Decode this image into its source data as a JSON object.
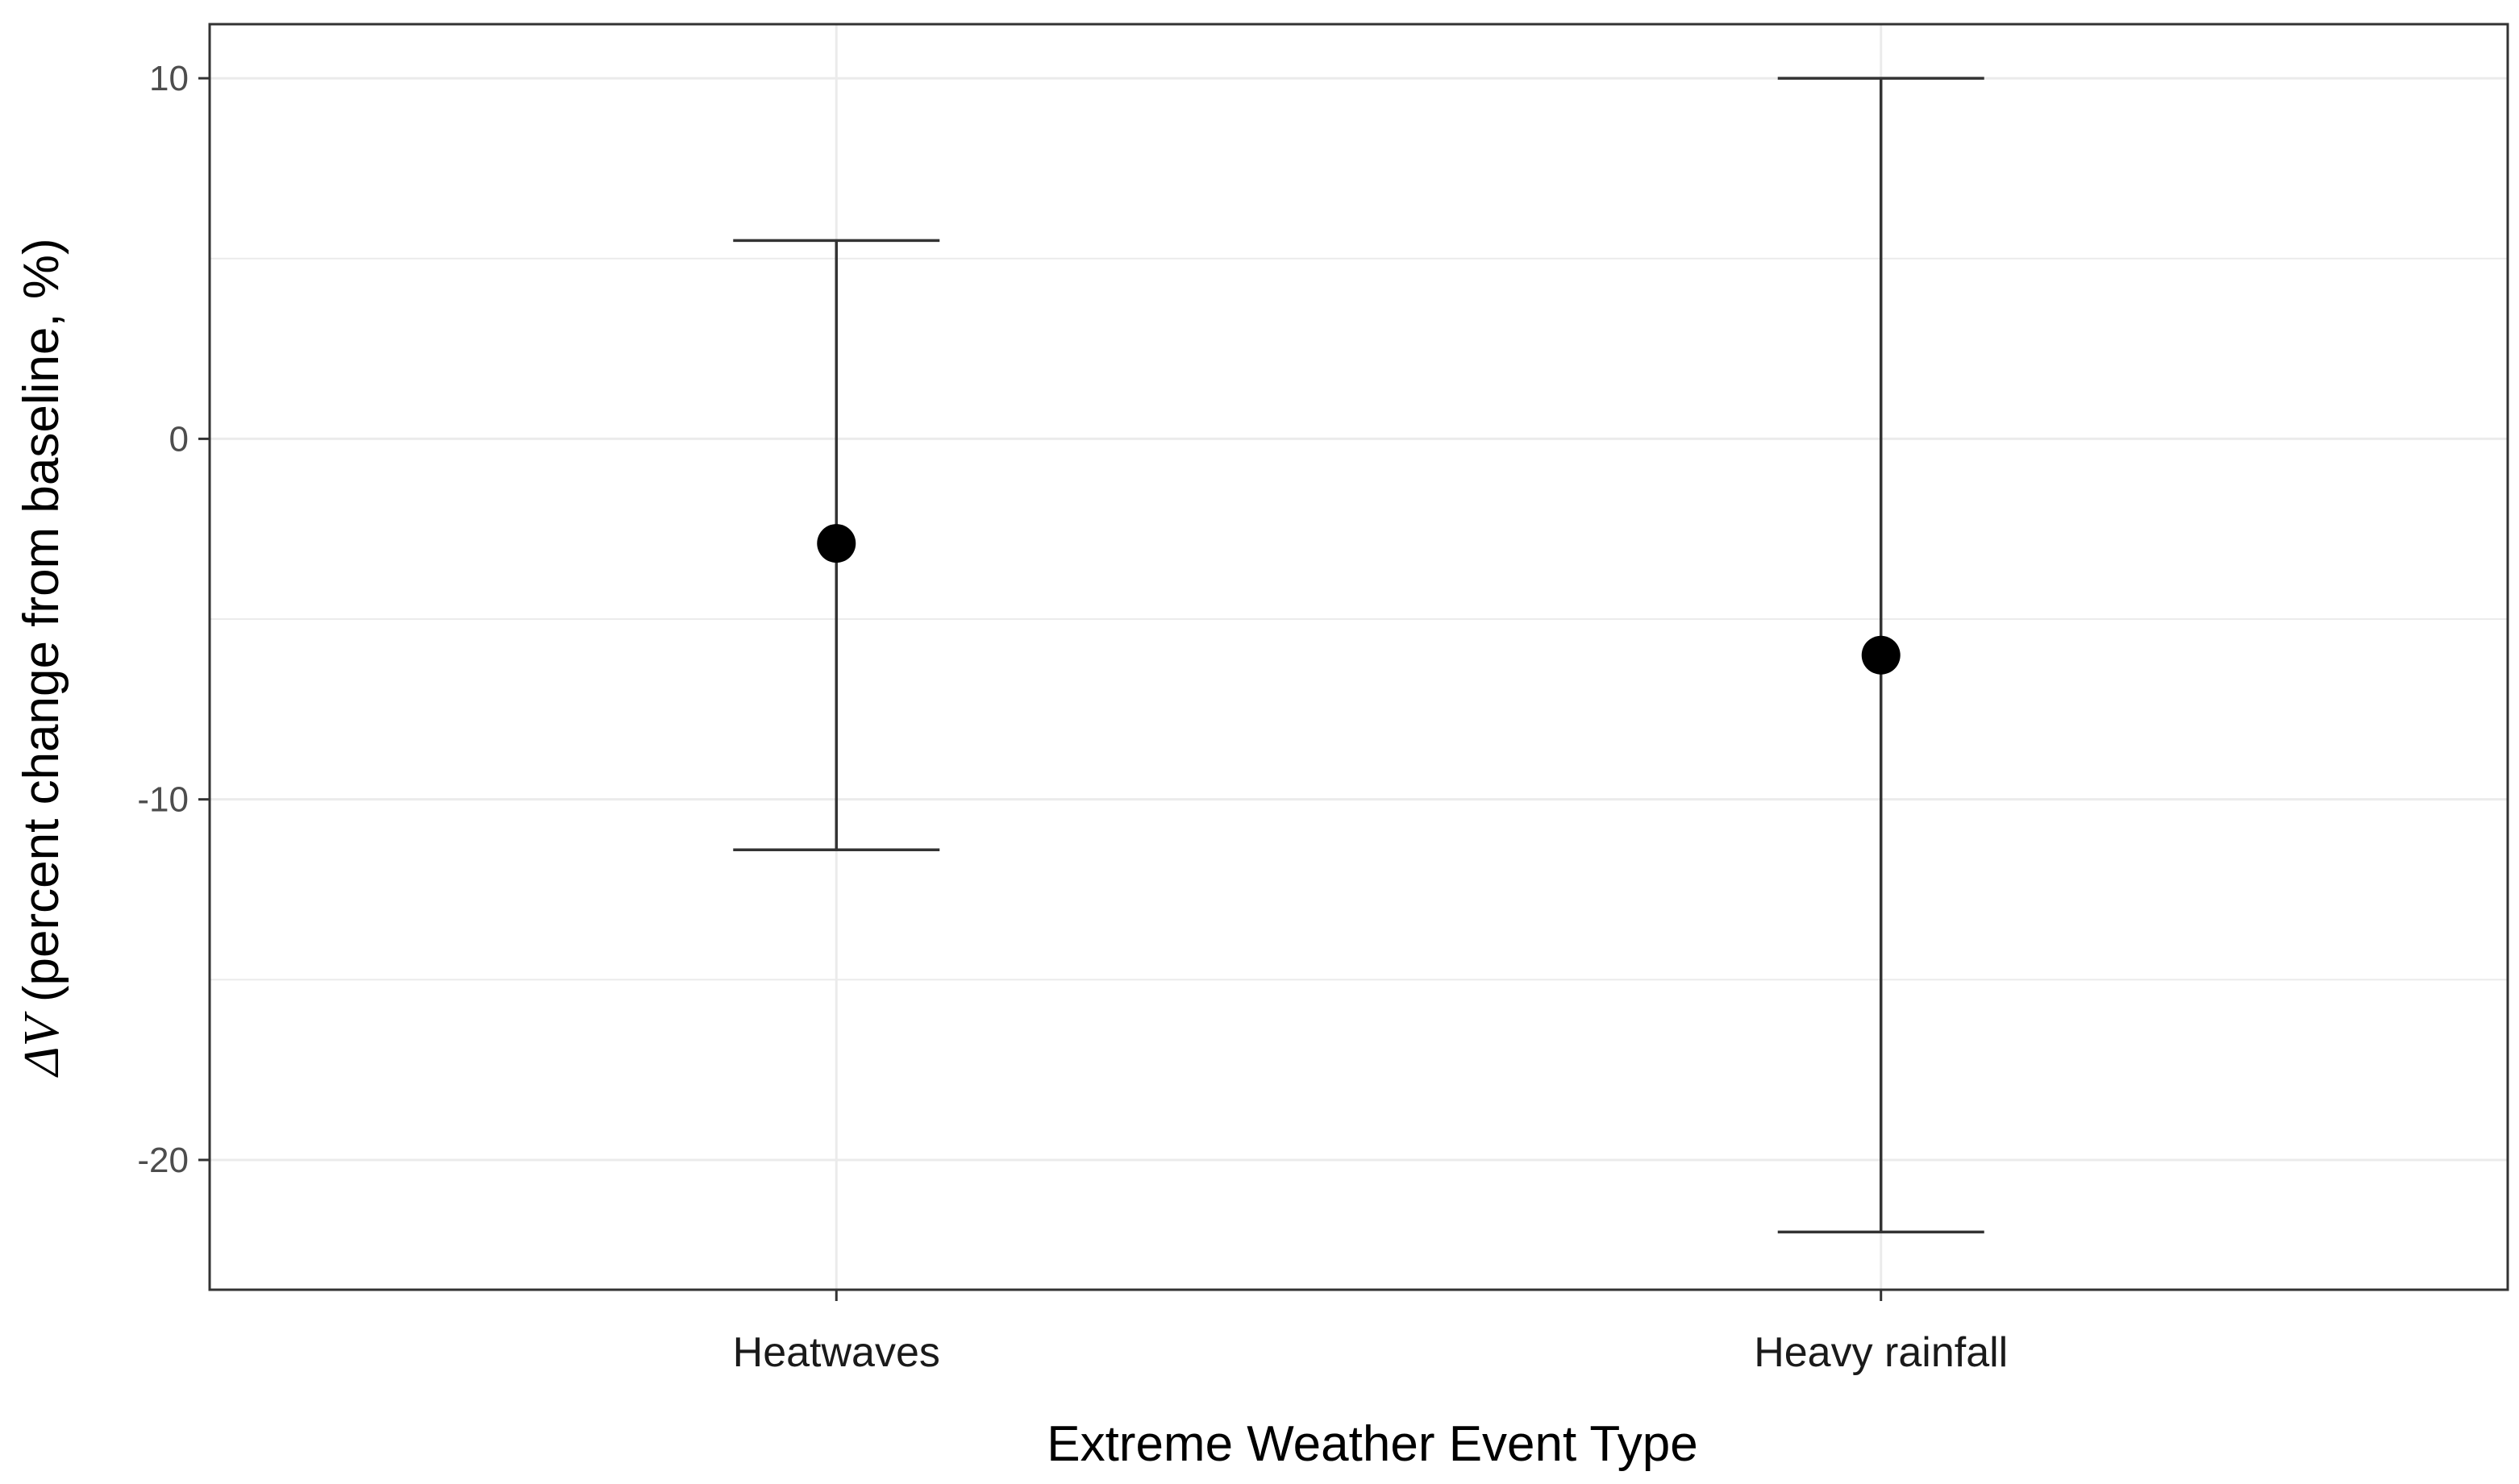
{
  "chart_data": {
    "type": "errorbar",
    "title": "",
    "xlabel": "Extreme Weather Event Type",
    "ylabel": {
      "symbol": "ΔV",
      "rest": " (percent change from baseline, %)"
    },
    "categories": [
      "Heatwaves",
      "Heavy rainfall"
    ],
    "series": [
      {
        "points": [
          {
            "category": "Heatwaves",
            "estimate": -2.9,
            "lower": -11.4,
            "upper": 5.5
          },
          {
            "category": "Heavy rainfall",
            "estimate": -6.0,
            "lower": -22.0,
            "upper": 10.0
          }
        ]
      }
    ],
    "yticks": [
      -20,
      -10,
      0,
      10
    ],
    "ytick_labels": [
      "-20",
      "-10",
      "0",
      "10"
    ],
    "ylim": [
      -23.6,
      11.5
    ],
    "grid": true,
    "colors": {
      "point": "#000000",
      "errorbar": "#333333",
      "grid": "#ebebeb",
      "panel_border": "#333333"
    }
  }
}
